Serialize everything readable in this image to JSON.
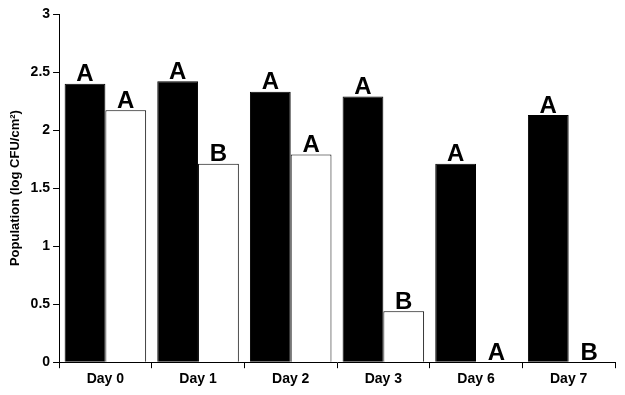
{
  "chart_data": {
    "type": "bar",
    "y_label": "Population (log CFU/cm²)",
    "categories": [
      "Day 0",
      "Day 1",
      "Day 2",
      "Day 3",
      "Day 6",
      "Day 7"
    ],
    "series": [
      {
        "color": "#000000",
        "values": [
          2.4,
          2.42,
          2.33,
          2.29,
          1.71,
          2.13
        ],
        "annotations": [
          "A",
          "A",
          "A",
          "A",
          "A",
          "A"
        ]
      },
      {
        "color": "#ffffff",
        "values": [
          2.17,
          1.71,
          1.79,
          0.44,
          0,
          0
        ],
        "annotations": [
          "A",
          "B",
          "A",
          "B",
          "A",
          "B"
        ]
      }
    ],
    "ylim": [
      0,
      3
    ],
    "yticks": [
      0,
      0.5,
      1,
      1.5,
      2,
      2.5,
      3
    ],
    "grid": false
  }
}
